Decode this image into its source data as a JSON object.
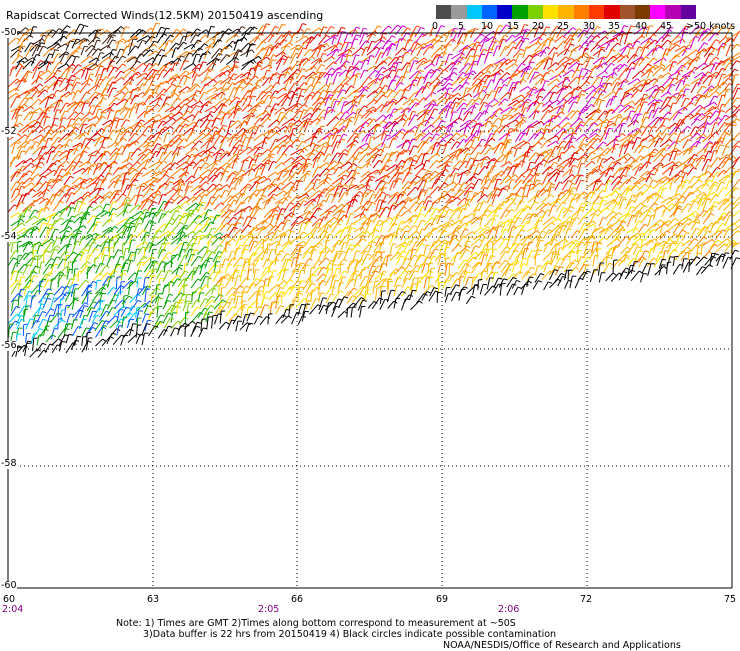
{
  "title": "Rapidscat Corrected Winds(12.5KM) 20150419 ascending",
  "legend": {
    "colors": [
      "#4d4d4d",
      "#9a9a9a",
      "#00c8ff",
      "#0064ff",
      "#0000c8",
      "#00a000",
      "#7ccf00",
      "#ffe100",
      "#ffb400",
      "#ff7f00",
      "#ff3c00",
      "#e00000",
      "#a0522d",
      "#7a3a00",
      "#ff00ff",
      "#b400b4",
      "#6400a0"
    ],
    "labels": [
      "0",
      "5",
      "10",
      "15",
      "20",
      "25",
      "30",
      "35",
      "40",
      "45",
      ">50 knots"
    ]
  },
  "map": {
    "lat_labels": [
      "-50",
      "-52",
      "-54",
      "-56",
      "-58",
      "-60"
    ],
    "lon_labels": [
      "60",
      "63",
      "66",
      "69",
      "72",
      "75"
    ],
    "time_labels": [
      "2:04",
      "2:05",
      "2:06"
    ]
  },
  "notes": {
    "line1": "Note: 1) Times are GMT 2)Times along bottom correspond to measurement at ~50S",
    "line2": "3)Data buffer is 22 hrs from 20150419 4) Black circles indicate possible contamination",
    "line3": "NOAA/NESDIS/Office of Research and Applications"
  }
}
